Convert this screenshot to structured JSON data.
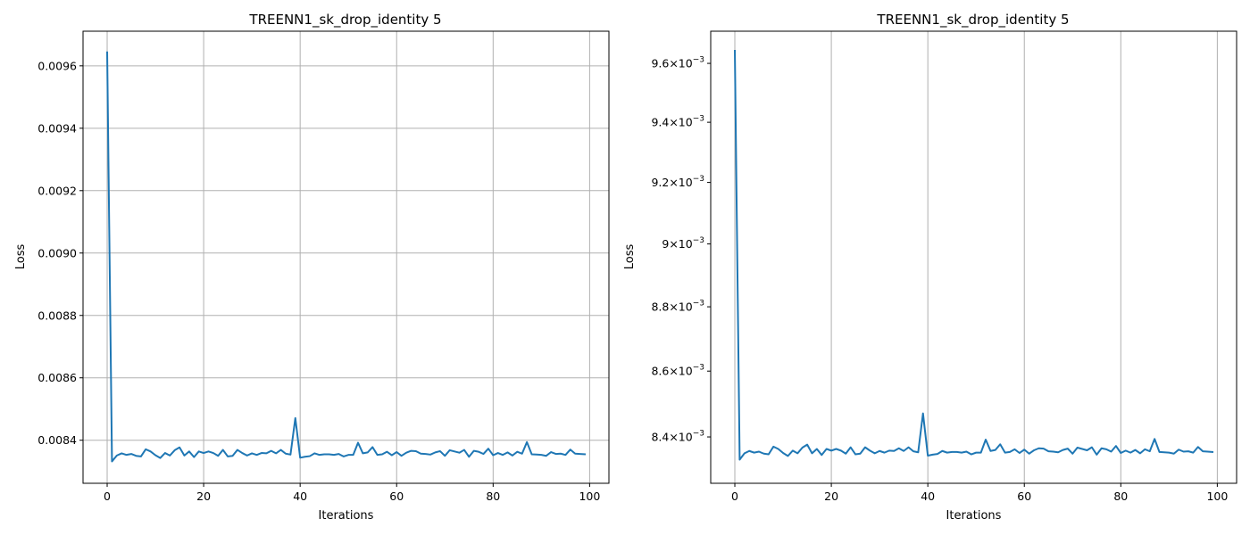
{
  "colors": {
    "line": "#1f77b4",
    "grid": "#b0b0b0"
  },
  "chart_data": [
    {
      "type": "line",
      "title": "TREENN1_sk_drop_identity 5",
      "xlabel": "Iterations",
      "ylabel": "Loss",
      "xlim": [
        -5,
        104
      ],
      "ylim": [
        0.008262,
        0.009711
      ],
      "yscale": "linear",
      "grid": true,
      "xticks": [
        0,
        20,
        40,
        60,
        80,
        100
      ],
      "yticks": [
        {
          "value": 0.0084,
          "label": "0.0084"
        },
        {
          "value": 0.0086,
          "label": "0.0086"
        },
        {
          "value": 0.0088,
          "label": "0.0088"
        },
        {
          "value": 0.009,
          "label": "0.0090"
        },
        {
          "value": 0.0092,
          "label": "0.0092"
        },
        {
          "value": 0.0094,
          "label": "0.0094"
        },
        {
          "value": 0.0096,
          "label": "0.0096"
        }
      ],
      "series": [
        {
          "x": [
            0,
            1,
            2,
            3,
            4,
            5,
            6,
            7,
            8,
            9,
            10,
            11,
            12,
            13,
            14,
            15,
            16,
            17,
            18,
            19,
            20,
            21,
            22,
            23,
            24,
            25,
            26,
            27,
            28,
            29,
            30,
            31,
            32,
            33,
            34,
            35,
            36,
            37,
            38,
            39,
            40,
            41,
            42,
            43,
            44,
            45,
            46,
            47,
            48,
            49,
            50,
            51,
            52,
            53,
            54,
            55,
            56,
            57,
            58,
            59,
            60,
            61,
            62,
            63,
            64,
            65,
            66,
            67,
            68,
            69,
            70,
            71,
            72,
            73,
            74,
            75,
            76,
            77,
            78,
            79,
            80,
            81,
            82,
            83,
            84,
            85,
            86,
            87,
            88,
            89,
            90,
            91,
            92,
            93,
            94,
            95,
            96,
            97,
            98,
            99
          ],
          "y": [
            0.009643,
            0.008332,
            0.008351,
            0.008358,
            0.008353,
            0.008356,
            0.00835,
            0.008348,
            0.008371,
            0.008364,
            0.008352,
            0.008343,
            0.008359,
            0.008351,
            0.008368,
            0.008377,
            0.008351,
            0.008364,
            0.008346,
            0.008364,
            0.008359,
            0.008364,
            0.008359,
            0.00835,
            0.008369,
            0.008348,
            0.00835,
            0.008369,
            0.008359,
            0.008351,
            0.008358,
            0.008353,
            0.008359,
            0.008358,
            0.008366,
            0.008358,
            0.008369,
            0.008357,
            0.008354,
            0.008471,
            0.008344,
            0.008347,
            0.008349,
            0.008358,
            0.008353,
            0.008355,
            0.008355,
            0.008353,
            0.008356,
            0.008348,
            0.008353,
            0.008353,
            0.008392,
            0.008358,
            0.008361,
            0.008378,
            0.008353,
            0.008355,
            0.008363,
            0.008352,
            0.008362,
            0.00835,
            0.00836,
            0.008366,
            0.008365,
            0.008357,
            0.008356,
            0.008354,
            0.008361,
            0.008365,
            0.00835,
            0.008368,
            0.008364,
            0.00836,
            0.008369,
            0.008347,
            0.008366,
            0.008363,
            0.008356,
            0.008373,
            0.008352,
            0.008359,
            0.008353,
            0.008361,
            0.008351,
            0.008363,
            0.008357,
            0.008394,
            0.008355,
            0.008354,
            0.008353,
            0.00835,
            0.008362,
            0.008356,
            0.008357,
            0.008353,
            0.00837,
            0.008357,
            0.008356,
            0.008355
          ]
        }
      ]
    },
    {
      "type": "line",
      "title": "TREENN1_sk_drop_identity 5",
      "xlabel": "Iterations",
      "ylabel": "Loss",
      "xlim": [
        -5,
        104
      ],
      "ylim": [
        0.008262,
        0.009711
      ],
      "yscale": "log",
      "grid": true,
      "grid_axis": "x",
      "xticks": [
        0,
        20,
        40,
        60,
        80,
        100
      ],
      "yticks": [
        {
          "value": 0.0084,
          "mantissa": "8.4",
          "exponent": "−3"
        },
        {
          "value": 0.0086,
          "mantissa": "8.6",
          "exponent": "−3"
        },
        {
          "value": 0.0088,
          "mantissa": "8.8",
          "exponent": "−3"
        },
        {
          "value": 0.009,
          "mantissa": "9",
          "exponent": "−3"
        },
        {
          "value": 0.0092,
          "mantissa": "9.2",
          "exponent": "−3"
        },
        {
          "value": 0.0094,
          "mantissa": "9.4",
          "exponent": "−3"
        },
        {
          "value": 0.0096,
          "mantissa": "9.6",
          "exponent": "−3"
        }
      ],
      "series": [
        {
          "x": [
            0,
            1,
            2,
            3,
            4,
            5,
            6,
            7,
            8,
            9,
            10,
            11,
            12,
            13,
            14,
            15,
            16,
            17,
            18,
            19,
            20,
            21,
            22,
            23,
            24,
            25,
            26,
            27,
            28,
            29,
            30,
            31,
            32,
            33,
            34,
            35,
            36,
            37,
            38,
            39,
            40,
            41,
            42,
            43,
            44,
            45,
            46,
            47,
            48,
            49,
            50,
            51,
            52,
            53,
            54,
            55,
            56,
            57,
            58,
            59,
            60,
            61,
            62,
            63,
            64,
            65,
            66,
            67,
            68,
            69,
            70,
            71,
            72,
            73,
            74,
            75,
            76,
            77,
            78,
            79,
            80,
            81,
            82,
            83,
            84,
            85,
            86,
            87,
            88,
            89,
            90,
            91,
            92,
            93,
            94,
            95,
            96,
            97,
            98,
            99
          ],
          "y": [
            0.009643,
            0.008332,
            0.008351,
            0.008358,
            0.008353,
            0.008356,
            0.00835,
            0.008348,
            0.008371,
            0.008364,
            0.008352,
            0.008343,
            0.008359,
            0.008351,
            0.008368,
            0.008377,
            0.008351,
            0.008364,
            0.008346,
            0.008364,
            0.008359,
            0.008364,
            0.008359,
            0.00835,
            0.008369,
            0.008348,
            0.00835,
            0.008369,
            0.008359,
            0.008351,
            0.008358,
            0.008353,
            0.008359,
            0.008358,
            0.008366,
            0.008358,
            0.008369,
            0.008357,
            0.008354,
            0.008471,
            0.008344,
            0.008347,
            0.008349,
            0.008358,
            0.008353,
            0.008355,
            0.008355,
            0.008353,
            0.008356,
            0.008348,
            0.008353,
            0.008353,
            0.008392,
            0.008358,
            0.008361,
            0.008378,
            0.008353,
            0.008355,
            0.008363,
            0.008352,
            0.008362,
            0.00835,
            0.00836,
            0.008366,
            0.008365,
            0.008357,
            0.008356,
            0.008354,
            0.008361,
            0.008365,
            0.00835,
            0.008368,
            0.008364,
            0.00836,
            0.008369,
            0.008347,
            0.008366,
            0.008363,
            0.008356,
            0.008373,
            0.008352,
            0.008359,
            0.008353,
            0.008361,
            0.008351,
            0.008363,
            0.008357,
            0.008394,
            0.008355,
            0.008354,
            0.008353,
            0.00835,
            0.008362,
            0.008356,
            0.008357,
            0.008353,
            0.00837,
            0.008357,
            0.008356,
            0.008355
          ]
        }
      ]
    }
  ]
}
